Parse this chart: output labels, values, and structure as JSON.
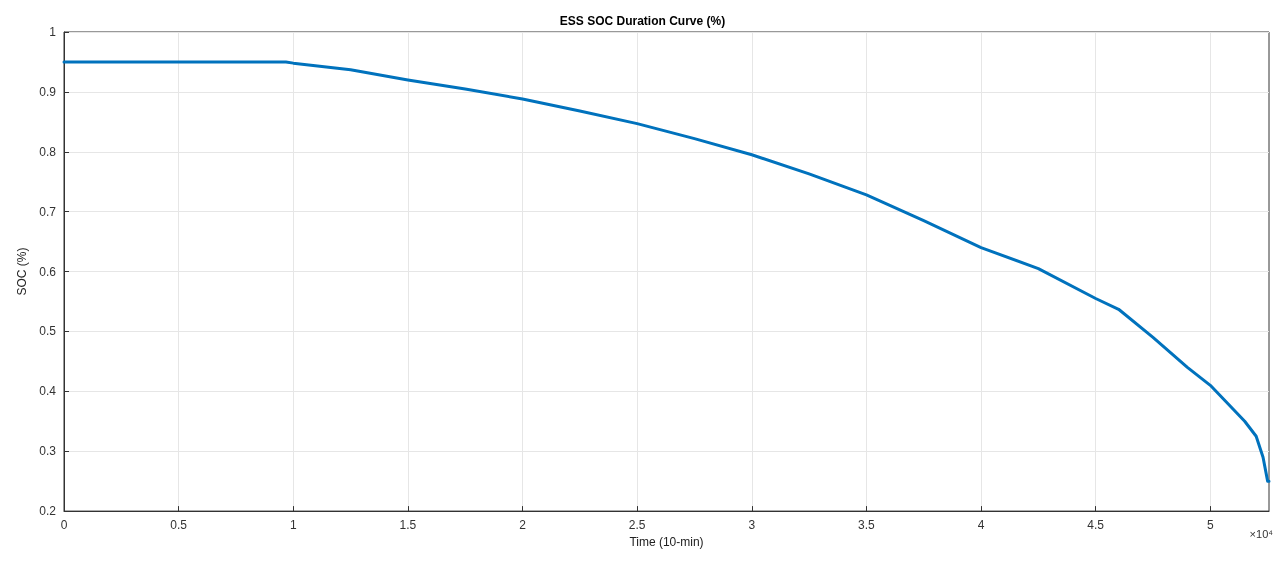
{
  "chart_data": {
    "type": "line",
    "title": "ESS SOC Duration Curve (%)",
    "xlabel": "Time (10-min)",
    "ylabel": "SOC (%)",
    "annotations": [
      "×10⁴"
    ],
    "series": [
      {
        "color": "#0072bd",
        "x": [
          0,
          0.968,
          1.0,
          1.25,
          1.5,
          1.75,
          2.0,
          2.25,
          2.5,
          2.75,
          3.0,
          3.25,
          3.5,
          3.75,
          4.0,
          4.25,
          4.5,
          4.6,
          4.75,
          4.9,
          5.0,
          5.1,
          5.15,
          5.2,
          5.23,
          5.25,
          5.256
        ],
        "values": [
          0.95,
          0.95,
          0.948,
          0.937,
          0.92,
          0.905,
          0.888,
          0.868,
          0.847,
          0.822,
          0.795,
          0.763,
          0.728,
          0.685,
          0.64,
          0.605,
          0.555,
          0.537,
          0.49,
          0.44,
          0.41,
          0.37,
          0.35,
          0.325,
          0.29,
          0.25,
          0.25
        ]
      }
    ],
    "xlim": [
      0,
      5.256
    ],
    "xticks": [
      0,
      0.5,
      1,
      1.5,
      2,
      2.5,
      3,
      3.5,
      4,
      4.5,
      5
    ],
    "ylim": [
      0.2,
      1
    ],
    "yticks": [
      0.2,
      0.3,
      0.4,
      0.5,
      0.6,
      0.7,
      0.8,
      0.9,
      1
    ],
    "grid": true,
    "line_style": "solid",
    "marker": "none"
  }
}
